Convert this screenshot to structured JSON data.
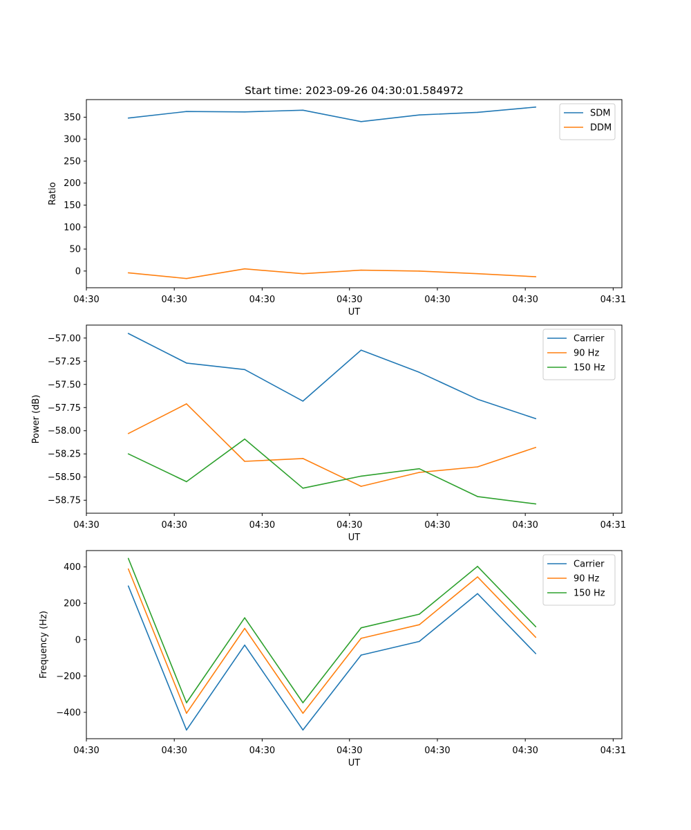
{
  "chart_data": [
    {
      "type": "line",
      "title": "Start time: 2023-09-26 04:30:01.584972",
      "xlabel": "UT",
      "ylabel": "Ratio",
      "x": [
        0,
        1,
        2,
        3,
        4,
        5,
        6,
        7
      ],
      "xlim": [
        -0.72,
        8.48
      ],
      "ylim": [
        -38,
        390
      ],
      "xticks": [
        -0.72,
        0.79,
        2.3,
        3.8,
        5.31,
        6.82,
        8.33
      ],
      "xticklabels": [
        "04:30",
        "04:30",
        "04:30",
        "04:30",
        "04:30",
        "04:30",
        "04:31"
      ],
      "yticks": [
        0,
        50,
        100,
        150,
        200,
        250,
        300,
        350
      ],
      "yticklabels": [
        "0",
        "50",
        "100",
        "150",
        "200",
        "250",
        "300",
        "350"
      ],
      "legend": "top-right",
      "series": [
        {
          "name": "SDM",
          "color": "#1f77b4",
          "values": [
            348,
            363,
            362,
            366,
            340,
            355,
            361,
            373
          ]
        },
        {
          "name": "DDM",
          "color": "#ff7f0e",
          "values": [
            -4,
            -17,
            5,
            -6,
            2,
            0,
            -6,
            -13
          ]
        }
      ]
    },
    {
      "type": "line",
      "title": "",
      "xlabel": "UT",
      "ylabel": "Power (dB)",
      "x": [
        0,
        1,
        2,
        3,
        4,
        5,
        6,
        7
      ],
      "xlim": [
        -0.72,
        8.48
      ],
      "ylim": [
        -58.89,
        -56.86
      ],
      "xticks": [
        -0.72,
        0.79,
        2.3,
        3.8,
        5.31,
        6.82,
        8.33
      ],
      "xticklabels": [
        "04:30",
        "04:30",
        "04:30",
        "04:30",
        "04:30",
        "04:30",
        "04:31"
      ],
      "yticks": [
        -57.0,
        -57.25,
        -57.5,
        -57.75,
        -58.0,
        -58.25,
        -58.5,
        -58.75
      ],
      "yticklabels": [
        "−57.00",
        "−57.25",
        "−57.50",
        "−57.75",
        "−58.00",
        "−58.25",
        "−58.50",
        "−58.75"
      ],
      "legend": "top-right",
      "series": [
        {
          "name": "Carrier",
          "color": "#1f77b4",
          "values": [
            -56.95,
            -57.27,
            -57.34,
            -57.68,
            -57.13,
            -57.37,
            -57.66,
            -57.87
          ]
        },
        {
          "name": "90 Hz",
          "color": "#ff7f0e",
          "values": [
            -58.03,
            -57.71,
            -58.33,
            -58.3,
            -58.6,
            -58.45,
            -58.39,
            -58.18
          ]
        },
        {
          "name": "150 Hz",
          "color": "#2ca02c",
          "values": [
            -58.25,
            -58.55,
            -58.09,
            -58.62,
            -58.49,
            -58.41,
            -58.71,
            -58.79
          ]
        }
      ]
    },
    {
      "type": "line",
      "title": "",
      "xlabel": "UT",
      "ylabel": "Frequency (Hz)",
      "x": [
        0,
        1,
        2,
        3,
        4,
        5,
        6,
        7
      ],
      "xlim": [
        -0.72,
        8.48
      ],
      "ylim": [
        -545,
        490
      ],
      "xticks": [
        -0.72,
        0.79,
        2.3,
        3.8,
        5.31,
        6.82,
        8.33
      ],
      "xticklabels": [
        "04:30",
        "04:30",
        "04:30",
        "04:30",
        "04:30",
        "04:30",
        "04:31"
      ],
      "yticks": [
        -400,
        -200,
        0,
        200,
        400
      ],
      "yticklabels": [
        "−400",
        "−200",
        "0",
        "200",
        "400"
      ],
      "legend": "top-right",
      "series": [
        {
          "name": "Carrier",
          "color": "#1f77b4",
          "values": [
            295,
            -497,
            -30,
            -497,
            -85,
            -10,
            253,
            -77
          ]
        },
        {
          "name": "90 Hz",
          "color": "#ff7f0e",
          "values": [
            389,
            -405,
            62,
            -405,
            7,
            82,
            345,
            13
          ]
        },
        {
          "name": "150 Hz",
          "color": "#2ca02c",
          "values": [
            447,
            -347,
            120,
            -347,
            65,
            140,
            403,
            71
          ]
        }
      ]
    }
  ]
}
